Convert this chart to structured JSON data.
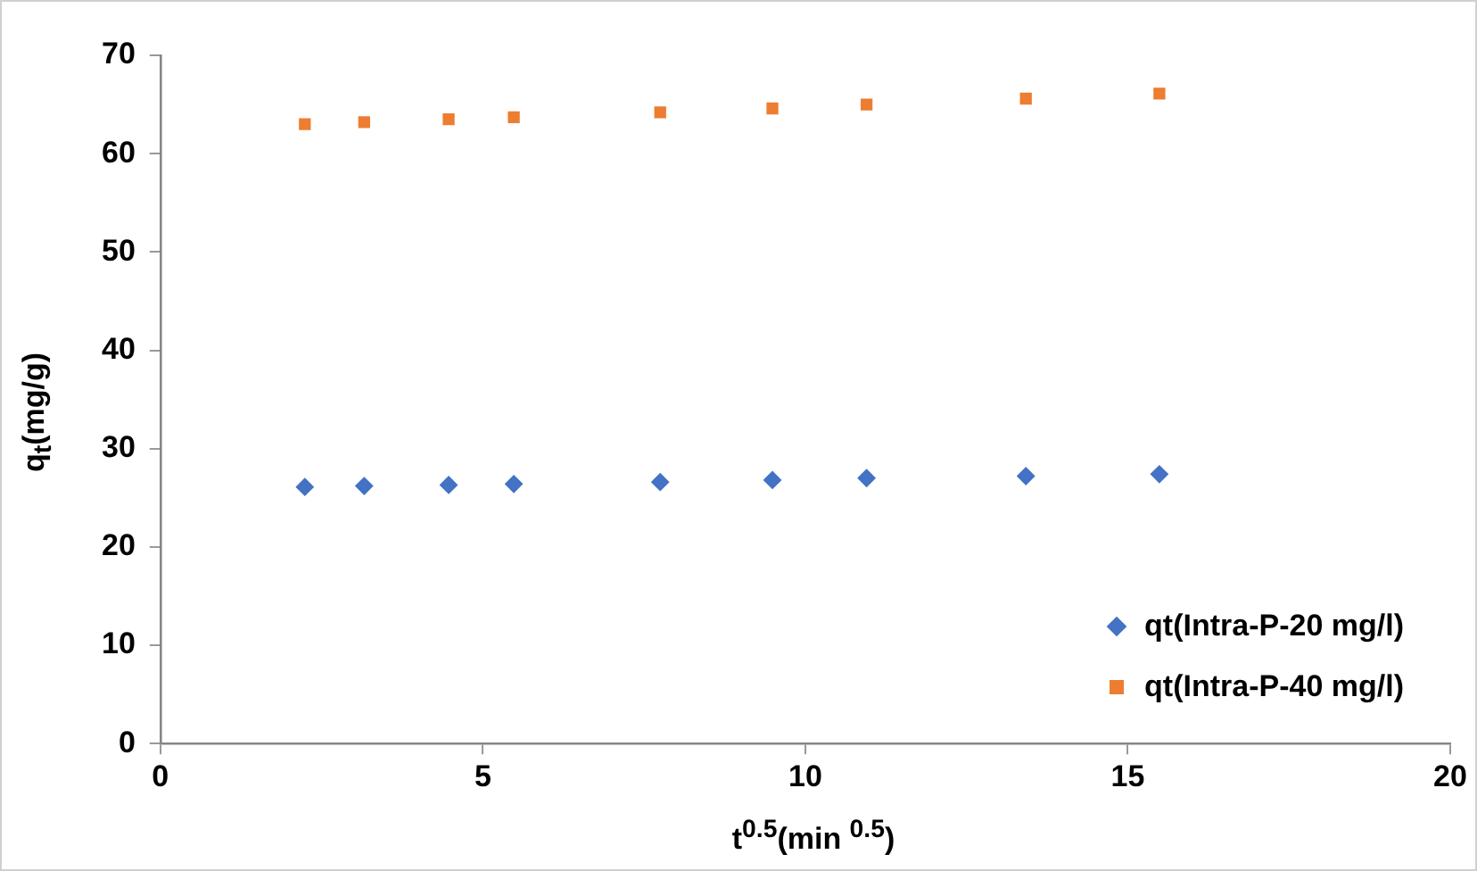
{
  "chart_data": {
    "type": "scatter",
    "xlabel": "t$^{0.5}$(min $^{0.5}$)",
    "ylabel": "q$_{t}$(mg/g)",
    "xlim": [
      0,
      20
    ],
    "xticks": [
      0,
      5,
      10,
      15,
      20
    ],
    "ylim": [
      0,
      70
    ],
    "yticks": [
      0,
      10,
      20,
      30,
      40,
      50,
      60,
      70
    ],
    "grid": false,
    "legend": "bottom right",
    "series": [
      {
        "name": "qt(Intra-P-20 mg/l)",
        "color": "#4472c4",
        "marker": "diamond",
        "x": [
          2.24,
          3.16,
          4.47,
          5.48,
          7.75,
          9.49,
          10.95,
          13.42,
          15.49
        ],
        "values": [
          26.1,
          26.2,
          26.3,
          26.4,
          26.6,
          26.8,
          27.0,
          27.2,
          27.4
        ]
      },
      {
        "name": "qt(Intra-P-40 mg/l)",
        "color": "#ed7d31",
        "marker": "square",
        "x": [
          2.24,
          3.16,
          4.47,
          5.48,
          7.75,
          9.49,
          10.95,
          13.42,
          15.49
        ],
        "values": [
          63.0,
          63.2,
          63.5,
          63.7,
          64.2,
          64.6,
          65.0,
          65.6,
          66.1
        ]
      }
    ]
  }
}
